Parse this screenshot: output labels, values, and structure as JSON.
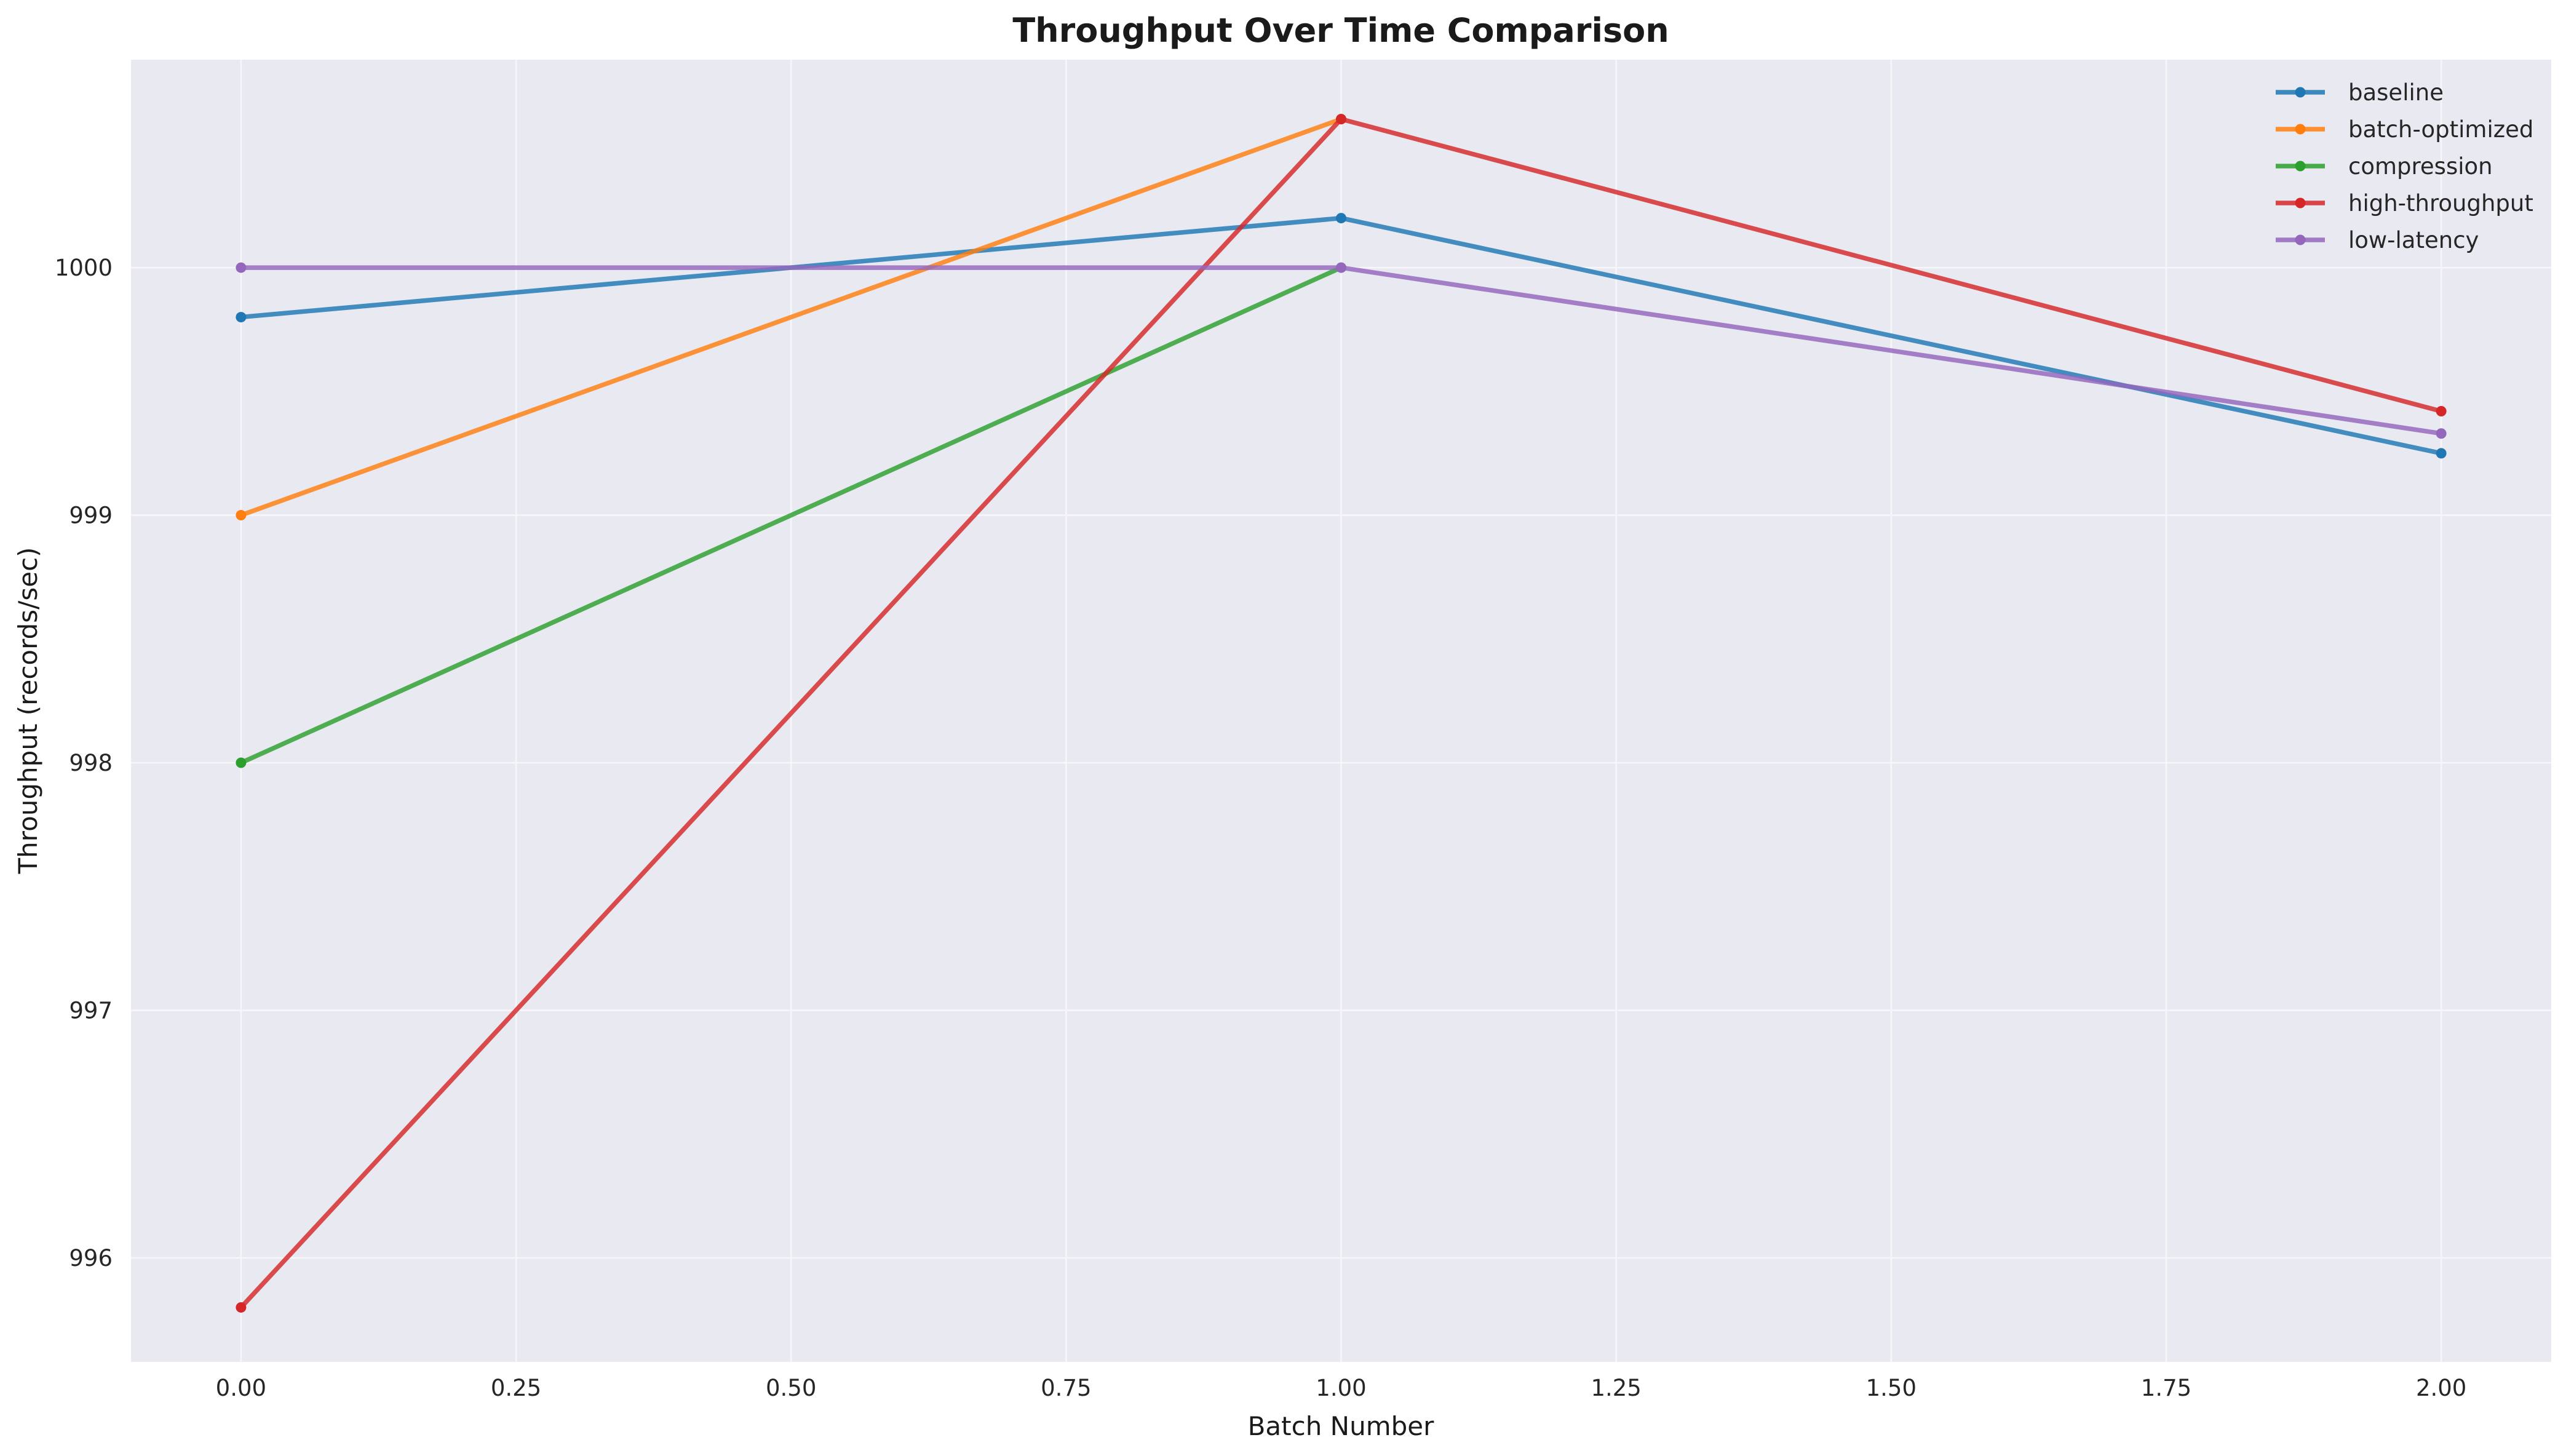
{
  "chart_data": {
    "type": "line",
    "title": "Throughput Over Time Comparison",
    "xlabel": "Batch Number",
    "ylabel": "Throughput (records/sec)",
    "xlim": [
      -0.1,
      2.1
    ],
    "ylim": [
      995.58,
      1000.84
    ],
    "x_ticks": [
      0.0,
      0.25,
      0.5,
      0.75,
      1.0,
      1.25,
      1.5,
      1.75,
      2.0
    ],
    "x_tick_labels": [
      "0.00",
      "0.25",
      "0.50",
      "0.75",
      "1.00",
      "1.25",
      "1.50",
      "1.75",
      "2.00"
    ],
    "y_ticks": [
      996,
      997,
      998,
      999,
      1000
    ],
    "y_tick_labels": [
      "996",
      "997",
      "998",
      "999",
      "1000"
    ],
    "grid": true,
    "background": "#e9e9f1",
    "legend_position": "top-right",
    "x": [
      0,
      1,
      2
    ],
    "series": [
      {
        "name": "baseline",
        "color": "#1f77b4",
        "values": [
          999.8,
          1000.2,
          999.25
        ]
      },
      {
        "name": "batch-optimized",
        "color": "#ff7f0e",
        "values": [
          999.0,
          1000.6,
          null
        ]
      },
      {
        "name": "compression",
        "color": "#2ca02c",
        "values": [
          998.0,
          1000.0,
          null
        ]
      },
      {
        "name": "high-throughput",
        "color": "#d62728",
        "values": [
          995.8,
          1000.6,
          999.42
        ]
      },
      {
        "name": "low-latency",
        "color": "#9467bd",
        "values": [
          1000.0,
          1000.0,
          999.33
        ]
      }
    ]
  }
}
